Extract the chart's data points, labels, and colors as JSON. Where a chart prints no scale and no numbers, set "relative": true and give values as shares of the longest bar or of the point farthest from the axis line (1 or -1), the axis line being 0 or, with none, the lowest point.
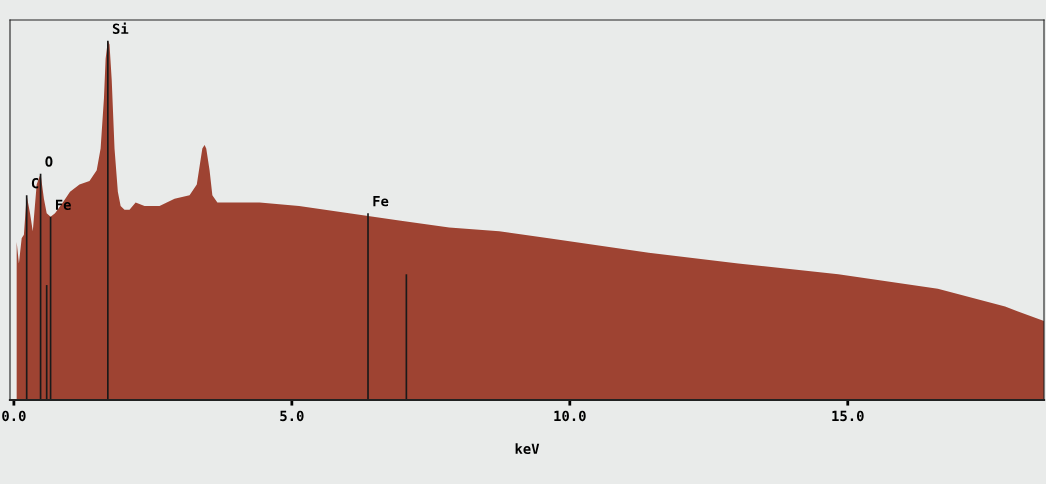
{
  "chart_data": {
    "type": "area",
    "relative": true,
    "xlabel": "keV",
    "xlim": [
      -0.07,
      18.53
    ],
    "xticks": [
      {
        "value": 0,
        "label": "0.0"
      },
      {
        "value": 5,
        "label": "5.0"
      },
      {
        "value": 10,
        "label": "10.0"
      },
      {
        "value": 15,
        "label": "15.0"
      }
    ],
    "grid": false,
    "legend": false,
    "tick_labels": "x",
    "series": [
      {
        "color": "#9e4332",
        "x": [
          0.05,
          0.09,
          0.14,
          0.18,
          0.23,
          0.29,
          0.34,
          0.41,
          0.48,
          0.54,
          0.59,
          0.66,
          0.74,
          0.88,
          1.01,
          1.18,
          1.36,
          1.49,
          1.56,
          1.62,
          1.65,
          1.69,
          1.72,
          1.76,
          1.81,
          1.87,
          1.92,
          1.99,
          2.08,
          2.19,
          2.35,
          2.62,
          2.89,
          3.16,
          3.29,
          3.36,
          3.39,
          3.43,
          3.46,
          3.52,
          3.57,
          3.66,
          4.06,
          4.42,
          5.13,
          6.03,
          6.93,
          7.83,
          8.73,
          9.62,
          10.52,
          11.42,
          13.03,
          14.83,
          16.62,
          17.83,
          18.53
        ],
        "values": [
          0.44,
          0.38,
          0.45,
          0.46,
          0.57,
          0.52,
          0.47,
          0.6,
          0.63,
          0.56,
          0.52,
          0.51,
          0.52,
          0.55,
          0.58,
          0.6,
          0.61,
          0.64,
          0.7,
          0.84,
          0.95,
          1.0,
          0.99,
          0.89,
          0.7,
          0.58,
          0.54,
          0.53,
          0.53,
          0.55,
          0.54,
          0.54,
          0.56,
          0.57,
          0.6,
          0.67,
          0.7,
          0.71,
          0.7,
          0.64,
          0.57,
          0.55,
          0.55,
          0.55,
          0.54,
          0.52,
          0.5,
          0.48,
          0.47,
          0.45,
          0.43,
          0.41,
          0.38,
          0.35,
          0.31,
          0.26,
          0.22
        ]
      },
      {
        "type": "bar",
        "color": "#1a1a1a",
        "x": [
          0.23,
          0.48,
          0.59,
          0.66,
          1.69,
          6.37,
          7.06
        ],
        "values": [
          0.57,
          0.63,
          0.32,
          0.51,
          1.0,
          0.52,
          0.35
        ]
      }
    ],
    "annotations": [
      {
        "text": "C",
        "x": 0.23,
        "y": 0.57
      },
      {
        "text": "O",
        "x": 0.48,
        "y": 0.63
      },
      {
        "text": "Fe",
        "x": 0.66,
        "y": 0.51
      },
      {
        "text": "Si",
        "x": 1.69,
        "y": 1.0
      },
      {
        "text": "Fe",
        "x": 6.37,
        "y": 0.52
      }
    ]
  }
}
